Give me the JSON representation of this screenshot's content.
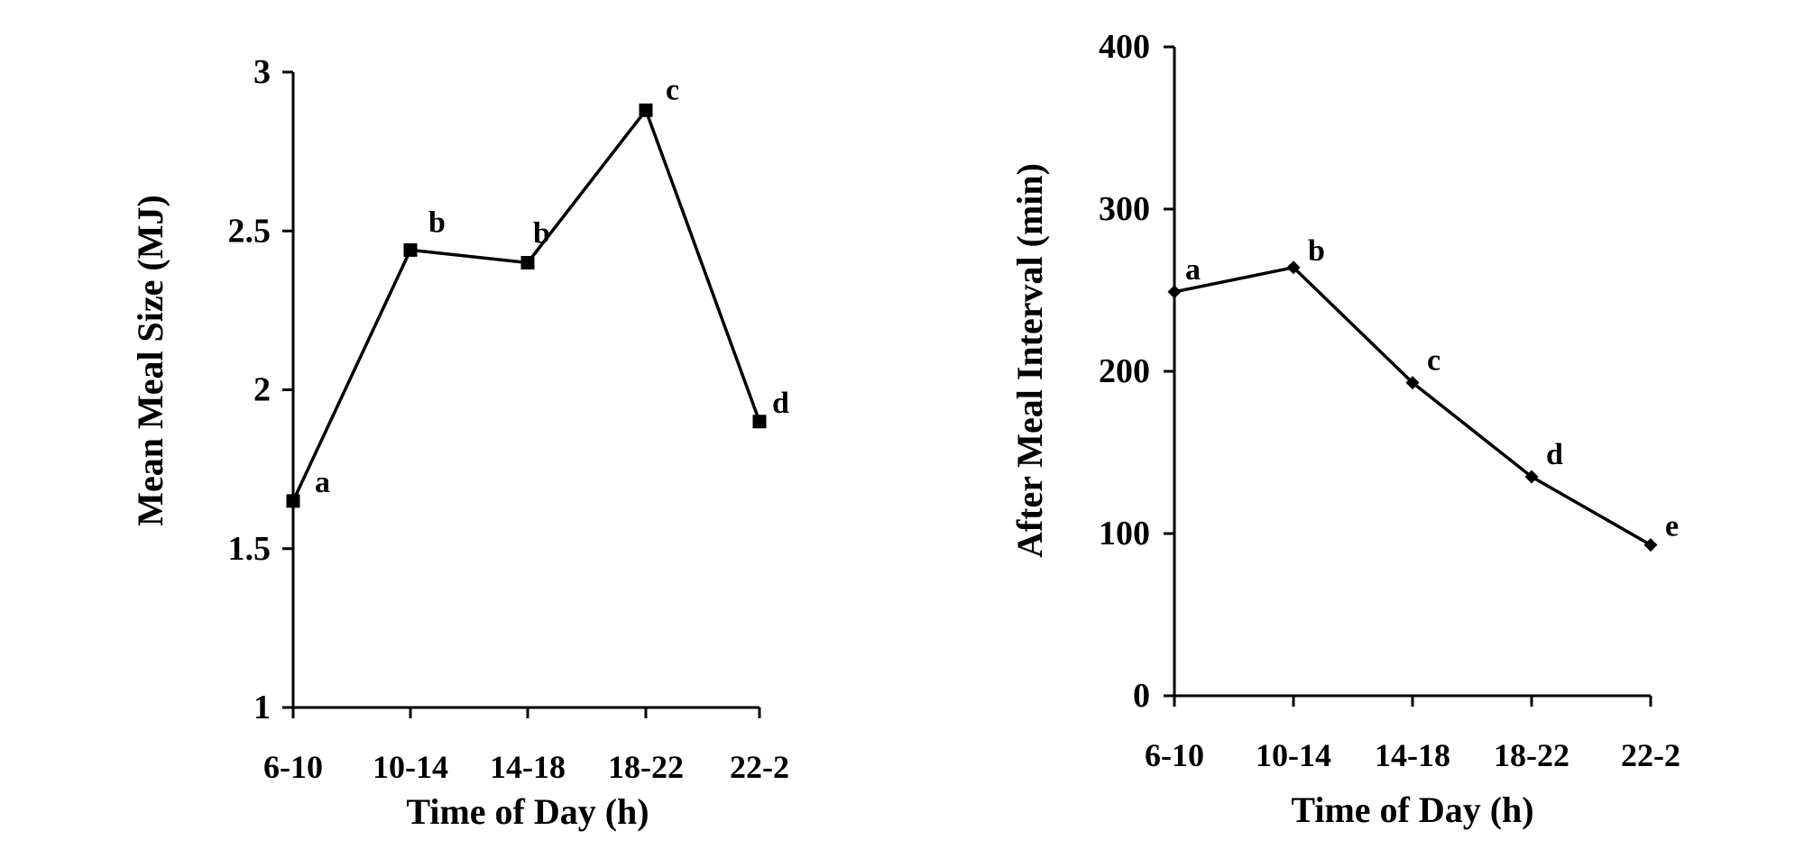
{
  "chart_data": [
    {
      "type": "line",
      "categories": [
        "6-10",
        "10-14",
        "14-18",
        "18-22",
        "22-2"
      ],
      "series": [
        {
          "values": [
            1.65,
            2.44,
            2.4,
            2.88,
            1.9
          ],
          "marker": "square"
        }
      ],
      "annotations": [
        "a",
        "b",
        "b",
        "c",
        "d"
      ],
      "xlabel": "Time of Day (h)",
      "ylabel": "Mean Meal Size (MJ)",
      "ylim": [
        1,
        3
      ],
      "yticks": [
        "1",
        "1.5",
        "2",
        "2.5",
        "3"
      ],
      "grid": false,
      "line_color": "#000000"
    },
    {
      "type": "line",
      "categories": [
        "6-10",
        "10-14",
        "14-18",
        "18-22",
        "22-2"
      ],
      "series": [
        {
          "values": [
            249,
            264,
            193,
            135,
            93
          ],
          "marker": "diamond"
        }
      ],
      "annotations": [
        "a",
        "b",
        "c",
        "d",
        "e"
      ],
      "xlabel": "Time of Day (h)",
      "ylabel": "After Meal Interval (min)",
      "ylim": [
        0,
        400
      ],
      "yticks": [
        "0",
        "100",
        "200",
        "300",
        "400"
      ],
      "grid": false,
      "line_color": "#000000"
    }
  ]
}
